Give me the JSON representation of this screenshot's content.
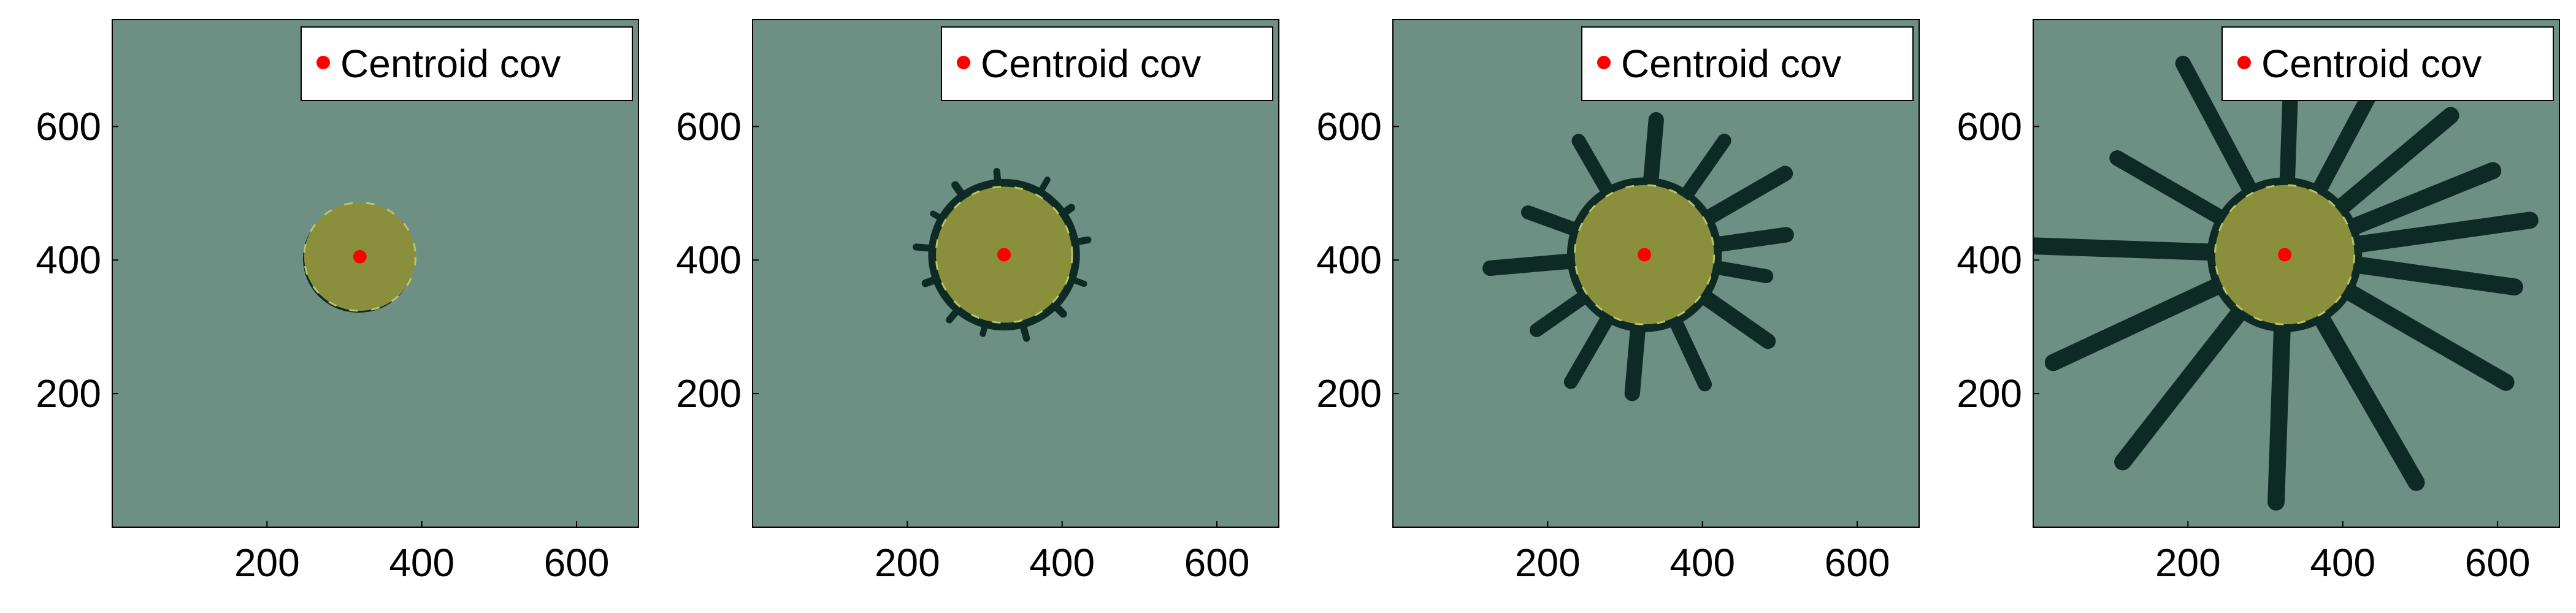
{
  "figure": {
    "background": "#ffffff",
    "plot_background": "#6e8f84",
    "spheroid_color": "#8a8f3c",
    "spheroid_edge_color": "#b9c46a",
    "invasion_color": "#0e2a24",
    "centroid_color": "#ff0000"
  },
  "chart_data": [
    {
      "type": "scatter",
      "panel": 1,
      "legend": {
        "label": "Centroid cov",
        "placement": "top-right",
        "marker": "red-dot"
      },
      "centroid": {
        "x": 320,
        "y": 405
      },
      "xlim": [
        0,
        680
      ],
      "ylim": [
        0,
        760
      ],
      "xticks": [
        200,
        400,
        600
      ],
      "yticks": [
        200,
        400,
        600
      ],
      "spheroid": {
        "cx": 320,
        "cy": 405,
        "rx": 72,
        "ry": 70
      },
      "grid": false
    },
    {
      "type": "scatter",
      "panel": 2,
      "legend": {
        "label": "Centroid cov",
        "placement": "top-right",
        "marker": "red-dot"
      },
      "centroid": {
        "x": 325,
        "y": 408
      },
      "xlim": [
        0,
        680
      ],
      "ylim": [
        0,
        760
      ],
      "xticks": [
        200,
        400,
        600
      ],
      "yticks": [
        200,
        400,
        600
      ],
      "spheroid": {
        "cx": 325,
        "cy": 408,
        "rx": 88,
        "ry": 88
      },
      "grid": false
    },
    {
      "type": "scatter",
      "panel": 3,
      "legend": {
        "label": "Centroid cov",
        "placement": "top-right",
        "marker": "red-dot"
      },
      "centroid": {
        "x": 325,
        "y": 408
      },
      "xlim": [
        0,
        680
      ],
      "ylim": [
        0,
        760
      ],
      "xticks": [
        200,
        400,
        600
      ],
      "yticks": [
        200,
        400,
        600
      ],
      "spheroid": {
        "cx": 325,
        "cy": 408,
        "rx": 90,
        "ry": 90
      },
      "grid": false
    },
    {
      "type": "scatter",
      "panel": 4,
      "legend": {
        "label": "Centroid cov",
        "placement": "top-right",
        "marker": "red-dot"
      },
      "centroid": {
        "x": 325,
        "y": 408
      },
      "xlim": [
        0,
        680
      ],
      "ylim": [
        0,
        760
      ],
      "xticks": [
        200,
        400,
        600
      ],
      "yticks": [
        200,
        400,
        600
      ],
      "spheroid": {
        "cx": 325,
        "cy": 408,
        "rx": 90,
        "ry": 90
      },
      "grid": false
    }
  ]
}
